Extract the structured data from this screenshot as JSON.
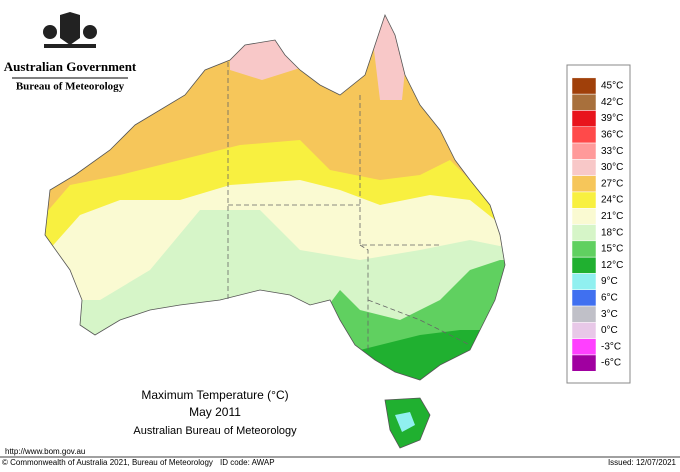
{
  "header": {
    "government": "Australian Government",
    "agency": "Bureau of Meteorology"
  },
  "legend": {
    "items": [
      {
        "label": "45°C",
        "color": "#a0400a"
      },
      {
        "label": "42°C",
        "color": "#a8703c"
      },
      {
        "label": "39°C",
        "color": "#e8141c"
      },
      {
        "label": "36°C",
        "color": "#ff4a4a"
      },
      {
        "label": "33°C",
        "color": "#ff9a9a"
      },
      {
        "label": "30°C",
        "color": "#f8c8c8"
      },
      {
        "label": "27°C",
        "color": "#f6c65a"
      },
      {
        "label": "24°C",
        "color": "#f8f040"
      },
      {
        "label": "21°C",
        "color": "#fafad2"
      },
      {
        "label": "18°C",
        "color": "#d6f5c8"
      },
      {
        "label": "15°C",
        "color": "#60d060"
      },
      {
        "label": "12°C",
        "color": "#20b030"
      },
      {
        "label": "9°C",
        "color": "#90f0f0"
      },
      {
        "label": "6°C",
        "color": "#4070f0"
      },
      {
        "label": "3°C",
        "color": "#c0c0c8"
      },
      {
        "label": "0°C",
        "color": "#e8c8e8"
      },
      {
        "label": "-3°C",
        "color": "#ff40ff"
      },
      {
        "label": "-6°C",
        "color": "#a000a0"
      }
    ]
  },
  "caption": {
    "title": "Maximum Temperature (°C)",
    "period": "May 2011",
    "source": "Australian Bureau of Meteorology"
  },
  "footer": {
    "url": "http://www.bom.gov.au",
    "copyright": "© Commonwealth of Australia 2021, Bureau of Meteorology",
    "id_code": "ID code: AWAP",
    "issued": "Issued: 12/07/2021"
  }
}
